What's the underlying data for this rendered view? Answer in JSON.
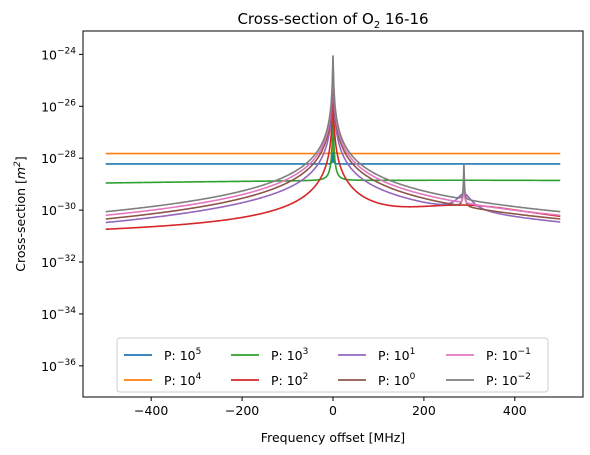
{
  "chart_data": {
    "type": "line",
    "title_parts": {
      "pre": "Cross-section of O",
      "sub": "2",
      "post": " 16-16"
    },
    "xlabel": "Frequency offset [MHz]",
    "ylabel_parts": {
      "pre": "Cross-section [",
      "base": "m",
      "sup": "2",
      "post": "]"
    },
    "y_scale": "log",
    "xlim": [
      -550,
      550
    ],
    "ylim_exp": [
      -37.2,
      -23.1
    ],
    "x_ticks": [
      -400,
      -200,
      0,
      200,
      400
    ],
    "x_tick_labels": [
      "−400",
      "−200",
      "0",
      "200",
      "400"
    ],
    "y_tick_exps": [
      -24,
      -26,
      -28,
      -30,
      -32,
      -34,
      -36
    ],
    "y_tick_labels": [
      "−24",
      "−26",
      "−28",
      "−30",
      "−32",
      "−34",
      "−36"
    ],
    "y_tick_base": "10",
    "grid": false,
    "legend": {
      "placement": "lower-center",
      "columns": 4,
      "prefix": "P: 10"
    },
    "lines": {
      "main_center": 0,
      "secondary_center": 288,
      "x_range": [
        -500,
        500
      ]
    },
    "series": [
      {
        "name_exp": "5",
        "color": "#1f77b4",
        "flat_log": -28.22,
        "peak_log": -27.78,
        "main_hw": 1500000,
        "secondary_log": -28.22,
        "secondary_hw": 150000
      },
      {
        "name_exp": "4",
        "color": "#ff7f0e",
        "flat_log": -28.6,
        "peak_log": -27.32,
        "main_hw": 150000,
        "secondary_log": -27.82,
        "secondary_hw": 15000
      },
      {
        "name_exp": "3",
        "color": "#2ca02c",
        "flat_log": -29.06,
        "peak_log": -26.3,
        "main_hw": 15000,
        "secondary_log": -28.85,
        "secondary_hw": 1500
      },
      {
        "name_exp": "2",
        "color": "#d62728",
        "flat_log": -30.06,
        "peak_log": -25.3,
        "main_hw": 1500,
        "secondary_log": -29.85,
        "secondary_hw": 150
      },
      {
        "name_exp": "1",
        "color": "#9467bd",
        "flat_log": -31.06,
        "peak_log": -24.6,
        "main_hw": 150,
        "secondary_log": -29.45,
        "secondary_hw": 15
      },
      {
        "name_exp": "0",
        "color": "#8c564b",
        "flat_log": -32.06,
        "peak_log": -24.35,
        "main_hw": 15,
        "secondary_log": -29.05,
        "secondary_hw": 1.5
      },
      {
        "name_exp": "−1",
        "color": "#e377c2",
        "flat_log": -33.06,
        "peak_log": -24.2,
        "main_hw": 1.5,
        "secondary_log": -28.65,
        "secondary_hw": 0.15
      },
      {
        "name_exp": "−2",
        "color": "#7f7f7f",
        "flat_log": -34.06,
        "peak_log": -24.06,
        "main_hw": 0.15,
        "secondary_log": -28.25,
        "secondary_hw": 0.015
      }
    ]
  }
}
